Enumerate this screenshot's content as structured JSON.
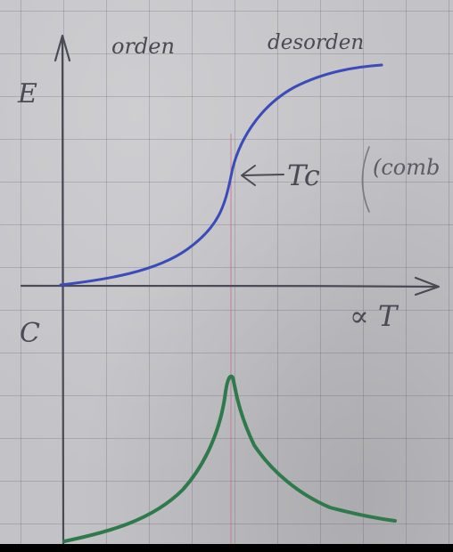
{
  "labels": {
    "order": "orden",
    "disorder": "desorden",
    "energy_axis": "E",
    "heat_capacity_axis": "C",
    "temperature_axis": "∝ T",
    "critical_point": "Tc",
    "side_note": "(comb"
  },
  "colors": {
    "pencil": "#4a4a55",
    "energy_curve": "#3b4bb8",
    "heat_capacity_curve": "#2e7a4c",
    "critical_line": "#c46a8a"
  }
}
